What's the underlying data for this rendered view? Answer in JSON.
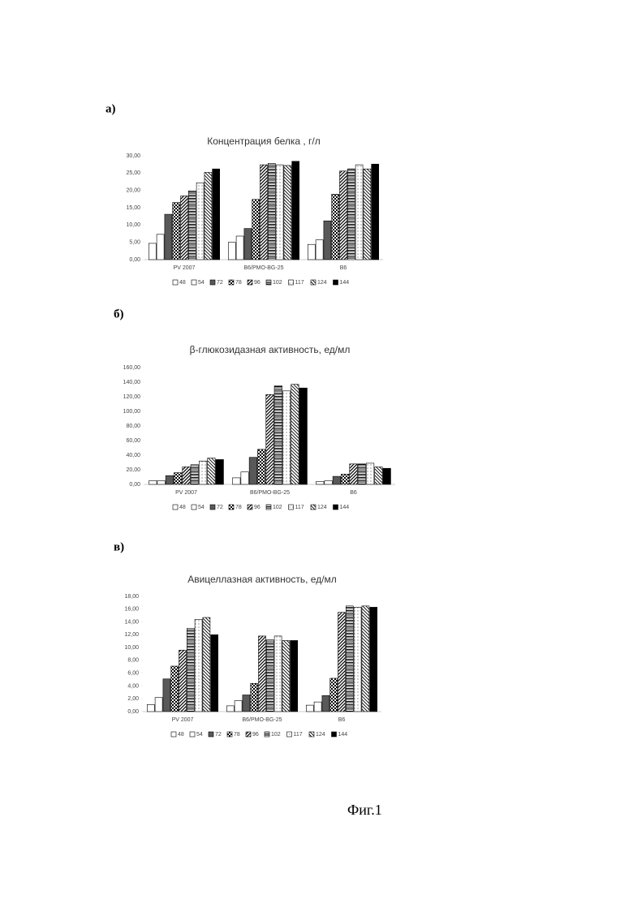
{
  "figure_caption": "Фиг.1",
  "chart_data": [
    {
      "type": "bar",
      "panel_label": "а)",
      "title": "Концентрация белка , г/л",
      "categories": [
        "PV 2007",
        "B6/PMO-BG-25",
        "B6"
      ],
      "ylim": [
        0,
        30
      ],
      "yticks": [
        {
          "value": 0,
          "label": "0,00"
        },
        {
          "value": 5,
          "label": "5,00"
        },
        {
          "value": 10,
          "label": "10,00"
        },
        {
          "value": 15,
          "label": "15,00"
        },
        {
          "value": 20,
          "label": "20,00"
        },
        {
          "value": 25,
          "label": "25,00"
        },
        {
          "value": 30,
          "label": "30,00"
        }
      ],
      "series": [
        {
          "name": "48",
          "color": "#ffffff",
          "values": [
            4.7,
            5.0,
            4.4
          ]
        },
        {
          "name": "54",
          "color": "#ffffff",
          "values": [
            7.3,
            6.8,
            5.7
          ]
        },
        {
          "name": "72",
          "color": "#595959",
          "values": [
            13.1,
            9.0,
            11.2
          ]
        },
        {
          "name": "78",
          "color": "#000000",
          "values": [
            16.5,
            17.4,
            18.9
          ]
        },
        {
          "name": "96",
          "color": "#000000",
          "values": [
            18.4,
            27.4,
            25.6
          ]
        },
        {
          "name": "102",
          "color": "#000000",
          "values": [
            19.9,
            27.8,
            26.2
          ]
        },
        {
          "name": "117",
          "color": "#000000",
          "values": [
            22.2,
            27.4,
            27.4
          ]
        },
        {
          "name": "124",
          "color": "#000000",
          "values": [
            25.2,
            27.2,
            26.2
          ]
        },
        {
          "name": "144",
          "color": "#000000",
          "values": [
            26.2,
            28.4,
            27.6
          ]
        }
      ]
    },
    {
      "type": "bar",
      "panel_label": "б)",
      "title": "β-глюкозидазная активность, ед/мл",
      "categories": [
        "PV 2007",
        "B6/PMO-BG-25",
        "B6"
      ],
      "ylim": [
        0,
        160
      ],
      "yticks": [
        {
          "value": 0,
          "label": "0,00"
        },
        {
          "value": 20,
          "label": "20,00"
        },
        {
          "value": 40,
          "label": "40,00"
        },
        {
          "value": 60,
          "label": "60,00"
        },
        {
          "value": 80,
          "label": "80,00"
        },
        {
          "value": 100,
          "label": "100,00"
        },
        {
          "value": 120,
          "label": "120,00"
        },
        {
          "value": 140,
          "label": "140,00"
        },
        {
          "value": 160,
          "label": "160,00"
        }
      ],
      "series": [
        {
          "name": "48",
          "color": "#ffffff",
          "values": [
            5,
            9,
            4
          ]
        },
        {
          "name": "54",
          "color": "#ffffff",
          "values": [
            5,
            17,
            5
          ]
        },
        {
          "name": "72",
          "color": "#595959",
          "values": [
            12,
            37,
            11
          ]
        },
        {
          "name": "78",
          "color": "#000000",
          "values": [
            16,
            48,
            14
          ]
        },
        {
          "name": "96",
          "color": "#000000",
          "values": [
            24,
            123,
            28
          ]
        },
        {
          "name": "102",
          "color": "#000000",
          "values": [
            27,
            135,
            28
          ]
        },
        {
          "name": "117",
          "color": "#000000",
          "values": [
            32,
            128,
            29
          ]
        },
        {
          "name": "124",
          "color": "#000000",
          "values": [
            36,
            137,
            24
          ]
        },
        {
          "name": "144",
          "color": "#000000",
          "values": [
            34,
            132,
            22
          ]
        }
      ]
    },
    {
      "type": "bar",
      "panel_label": "в)",
      "title": "Авицеллазная активность, ед/мл",
      "categories": [
        "PV 2007",
        "B6/PMO-BG-25",
        "B6"
      ],
      "ylim": [
        0,
        18
      ],
      "yticks": [
        {
          "value": 0,
          "label": "0,00"
        },
        {
          "value": 2,
          "label": "2,00"
        },
        {
          "value": 4,
          "label": "4,00"
        },
        {
          "value": 6,
          "label": "6,00"
        },
        {
          "value": 8,
          "label": "8,00"
        },
        {
          "value": 10,
          "label": "10,00"
        },
        {
          "value": 12,
          "label": "12,00"
        },
        {
          "value": 14,
          "label": "14,00"
        },
        {
          "value": 16,
          "label": "16,00"
        },
        {
          "value": 18,
          "label": "18,00"
        }
      ],
      "series": [
        {
          "name": "48",
          "color": "#ffffff",
          "values": [
            1.1,
            0.9,
            1.0
          ]
        },
        {
          "name": "54",
          "color": "#ffffff",
          "values": [
            2.2,
            1.7,
            1.5
          ]
        },
        {
          "name": "72",
          "color": "#595959",
          "values": [
            5.1,
            2.6,
            2.5
          ]
        },
        {
          "name": "78",
          "color": "#000000",
          "values": [
            7.1,
            4.4,
            5.2
          ]
        },
        {
          "name": "96",
          "color": "#000000",
          "values": [
            9.6,
            11.8,
            15.5
          ]
        },
        {
          "name": "102",
          "color": "#000000",
          "values": [
            13.0,
            11.2,
            16.5
          ]
        },
        {
          "name": "117",
          "color": "#000000",
          "values": [
            14.4,
            11.8,
            16.3
          ]
        },
        {
          "name": "124",
          "color": "#000000",
          "values": [
            14.7,
            11.1,
            16.5
          ]
        },
        {
          "name": "144",
          "color": "#000000",
          "values": [
            12.0,
            11.1,
            16.3
          ]
        }
      ]
    }
  ]
}
